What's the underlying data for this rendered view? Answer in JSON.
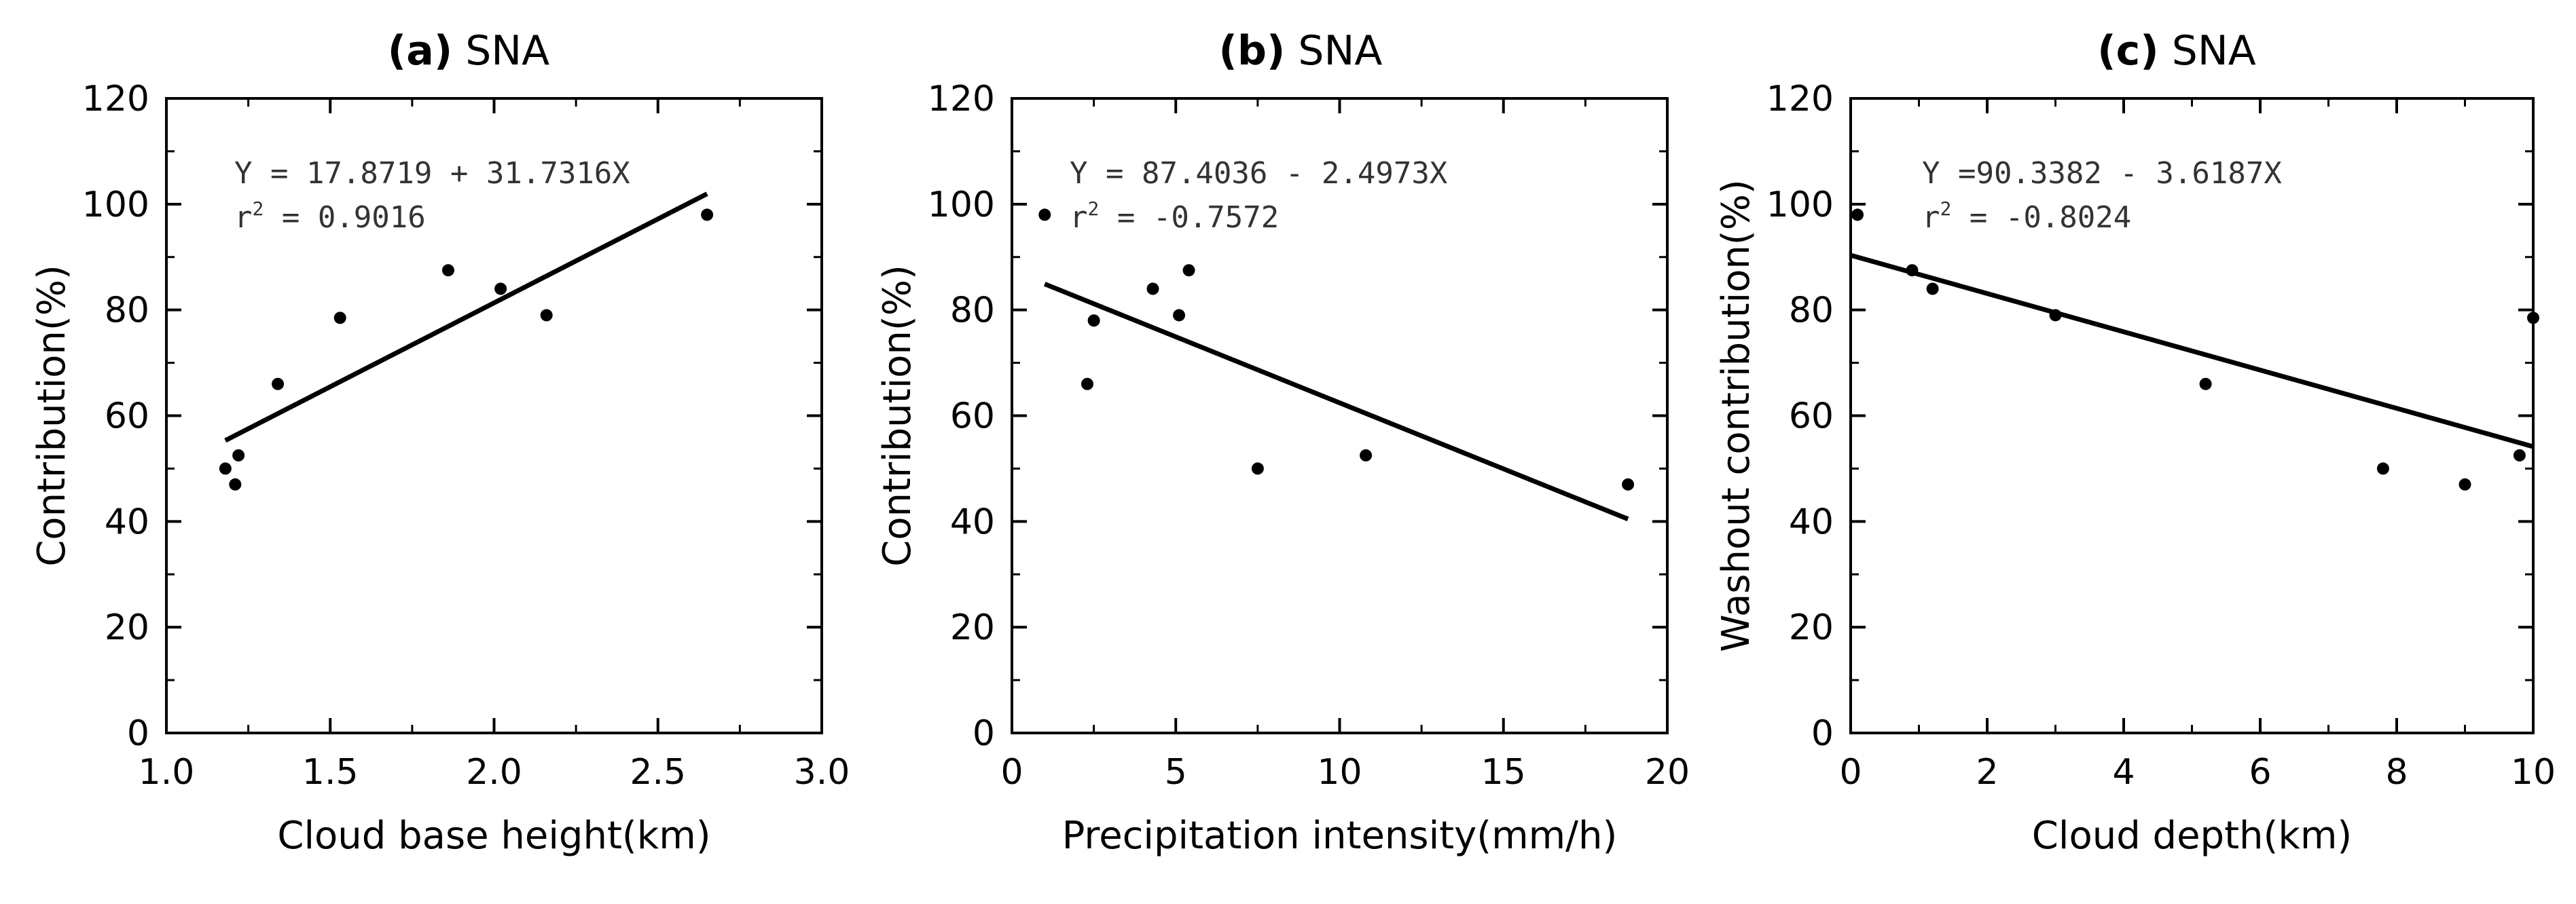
{
  "chart_data": [
    {
      "type": "scatter",
      "panel_label": "(a)",
      "title": "SNA",
      "xlabel": "Cloud base height(km)",
      "ylabel": "Contribution(%)",
      "xlim": [
        1.0,
        3.0
      ],
      "ylim": [
        0,
        120
      ],
      "xticks": [
        "1.0",
        "1.5",
        "2.0",
        "2.5",
        "3.0"
      ],
      "yticks": [
        "0",
        "20",
        "40",
        "60",
        "80",
        "100",
        "120"
      ],
      "equation": "Y = 17.8719 + 31.7316X",
      "r2_label": "r",
      "r2_value": " = 0.9016",
      "fit": {
        "intercept": 17.8719,
        "slope": 31.7316,
        "x_range": [
          1.18,
          2.65
        ]
      },
      "points": [
        {
          "x": 1.18,
          "y": 50
        },
        {
          "x": 1.21,
          "y": 47
        },
        {
          "x": 1.22,
          "y": 52.5
        },
        {
          "x": 1.34,
          "y": 66
        },
        {
          "x": 1.53,
          "y": 78.5
        },
        {
          "x": 1.86,
          "y": 87.5
        },
        {
          "x": 2.02,
          "y": 84
        },
        {
          "x": 2.16,
          "y": 79
        },
        {
          "x": 2.65,
          "y": 98
        }
      ]
    },
    {
      "type": "scatter",
      "panel_label": "(b)",
      "title": "SNA",
      "xlabel": "Precipitation intensity(mm/h)",
      "ylabel": "Contribution(%)",
      "xlim": [
        0,
        20
      ],
      "ylim": [
        0,
        120
      ],
      "xticks": [
        "0",
        "5",
        "10",
        "15",
        "20"
      ],
      "yticks": [
        "0",
        "20",
        "40",
        "60",
        "80",
        "100",
        "120"
      ],
      "equation": "Y = 87.4036 - 2.4973X",
      "r2_label": "r",
      "r2_value": " = -0.7572",
      "fit": {
        "intercept": 87.4036,
        "slope": -2.4973,
        "x_range": [
          1.0,
          18.8
        ]
      },
      "points": [
        {
          "x": 1.0,
          "y": 98
        },
        {
          "x": 2.3,
          "y": 66
        },
        {
          "x": 2.5,
          "y": 78
        },
        {
          "x": 4.3,
          "y": 84
        },
        {
          "x": 5.1,
          "y": 79
        },
        {
          "x": 5.4,
          "y": 87.5
        },
        {
          "x": 7.5,
          "y": 50
        },
        {
          "x": 10.8,
          "y": 52.5
        },
        {
          "x": 18.8,
          "y": 47
        }
      ]
    },
    {
      "type": "scatter",
      "panel_label": "(c)",
      "title": "SNA",
      "xlabel": "Cloud depth(km)",
      "ylabel": "Washout contribution(%)",
      "xlim": [
        0,
        10
      ],
      "ylim": [
        0,
        120
      ],
      "xticks": [
        "0",
        "2",
        "4",
        "6",
        "8",
        "10"
      ],
      "yticks": [
        "0",
        "20",
        "40",
        "60",
        "80",
        "100",
        "120"
      ],
      "equation": "Y =90.3382 - 3.6187X",
      "r2_label": "r",
      "r2_value": " = -0.8024",
      "fit": {
        "intercept": 90.3382,
        "slope": -3.6187,
        "x_range": [
          0,
          10
        ]
      },
      "points": [
        {
          "x": 0.1,
          "y": 98
        },
        {
          "x": 0.9,
          "y": 87.5
        },
        {
          "x": 1.2,
          "y": 84
        },
        {
          "x": 3.0,
          "y": 79
        },
        {
          "x": 5.2,
          "y": 66
        },
        {
          "x": 7.8,
          "y": 50
        },
        {
          "x": 9.0,
          "y": 47
        },
        {
          "x": 9.8,
          "y": 52.5
        },
        {
          "x": 10.0,
          "y": 78.5
        }
      ]
    }
  ]
}
